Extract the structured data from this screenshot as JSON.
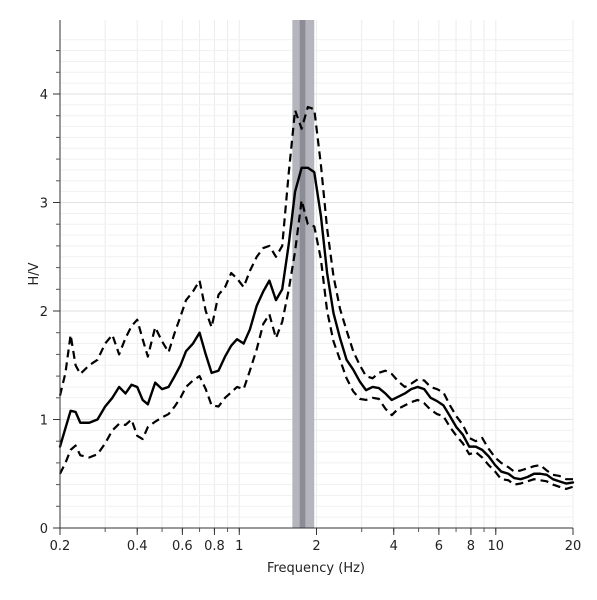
{
  "chart_data": {
    "type": "line",
    "title": "",
    "xlabel": "Frequency (Hz)",
    "ylabel": "H/V",
    "xscale": "log",
    "xlim": [
      0.2,
      20
    ],
    "ylim": [
      0,
      4.5
    ],
    "grid": true,
    "x_ticks": [
      {
        "value": 0.2,
        "label": "0.2"
      },
      {
        "value": 0.4,
        "label": "0.4"
      },
      {
        "value": 0.6,
        "label": "0.6"
      },
      {
        "value": 0.8,
        "label": "0.8"
      },
      {
        "value": 1,
        "label": "1"
      },
      {
        "value": 2,
        "label": "2"
      },
      {
        "value": 4,
        "label": "4"
      },
      {
        "value": 6,
        "label": "6"
      },
      {
        "value": 8,
        "label": "8"
      },
      {
        "value": 10,
        "label": "10"
      },
      {
        "value": 20,
        "label": "20"
      }
    ],
    "y_ticks": [
      {
        "value": 0,
        "label": "0"
      },
      {
        "value": 1,
        "label": "1"
      },
      {
        "value": 2,
        "label": "2"
      },
      {
        "value": 3,
        "label": "3"
      },
      {
        "value": 4,
        "label": "4"
      }
    ],
    "peak_band": {
      "outer": [
        1.61,
        1.96
      ],
      "inner": [
        1.72,
        1.81
      ],
      "outer_color": "#b5b5bd",
      "inner_color": "#8c8c96"
    },
    "x": [
      0.2,
      0.21,
      0.22,
      0.23,
      0.24,
      0.26,
      0.28,
      0.3,
      0.32,
      0.34,
      0.36,
      0.38,
      0.4,
      0.42,
      0.44,
      0.47,
      0.5,
      0.53,
      0.56,
      0.59,
      0.62,
      0.66,
      0.7,
      0.74,
      0.78,
      0.83,
      0.88,
      0.93,
      0.98,
      1.04,
      1.1,
      1.17,
      1.24,
      1.31,
      1.39,
      1.47,
      1.56,
      1.65,
      1.75,
      1.85,
      1.96,
      2.08,
      2.2,
      2.33,
      2.47,
      2.62,
      2.78,
      2.95,
      3.12,
      3.31,
      3.5,
      3.71,
      3.93,
      4.17,
      4.42,
      4.68,
      4.96,
      5.26,
      5.57,
      5.9,
      6.25,
      6.63,
      7.02,
      7.44,
      7.88,
      8.35,
      8.85,
      9.38,
      9.94,
      10.5,
      11.2,
      11.8,
      12.5,
      13.3,
      14.1,
      14.9,
      15.8,
      16.7,
      17.7,
      18.8,
      20
    ],
    "series": [
      {
        "style": "solid",
        "values": [
          0.75,
          0.92,
          1.08,
          1.07,
          0.97,
          0.97,
          1.0,
          1.12,
          1.2,
          1.3,
          1.24,
          1.32,
          1.3,
          1.18,
          1.14,
          1.34,
          1.28,
          1.3,
          1.4,
          1.5,
          1.63,
          1.7,
          1.8,
          1.6,
          1.43,
          1.45,
          1.58,
          1.68,
          1.74,
          1.7,
          1.83,
          2.05,
          2.18,
          2.28,
          2.1,
          2.2,
          2.62,
          3.1,
          3.32,
          3.32,
          3.28,
          2.88,
          2.35,
          1.98,
          1.75,
          1.55,
          1.46,
          1.35,
          1.27,
          1.3,
          1.29,
          1.24,
          1.18,
          1.21,
          1.24,
          1.28,
          1.3,
          1.28,
          1.2,
          1.17,
          1.13,
          1.03,
          0.93,
          0.86,
          0.75,
          0.75,
          0.72,
          0.66,
          0.58,
          0.52,
          0.5,
          0.46,
          0.45,
          0.47,
          0.5,
          0.5,
          0.49,
          0.45,
          0.43,
          0.41,
          0.42
        ]
      },
      {
        "style": "dashed",
        "values": [
          1.22,
          1.43,
          1.78,
          1.5,
          1.42,
          1.5,
          1.55,
          1.7,
          1.78,
          1.6,
          1.75,
          1.86,
          1.92,
          1.74,
          1.58,
          1.85,
          1.72,
          1.62,
          1.8,
          1.95,
          2.1,
          2.18,
          2.28,
          2.0,
          1.85,
          2.15,
          2.22,
          2.35,
          2.3,
          2.22,
          2.37,
          2.5,
          2.58,
          2.6,
          2.5,
          2.6,
          3.28,
          3.85,
          3.68,
          3.88,
          3.86,
          3.35,
          2.76,
          2.32,
          2.02,
          1.82,
          1.63,
          1.5,
          1.4,
          1.38,
          1.43,
          1.45,
          1.42,
          1.35,
          1.3,
          1.33,
          1.37,
          1.36,
          1.3,
          1.28,
          1.25,
          1.13,
          1.03,
          0.95,
          0.83,
          0.8,
          0.83,
          0.73,
          0.65,
          0.6,
          0.56,
          0.52,
          0.53,
          0.55,
          0.57,
          0.58,
          0.53,
          0.49,
          0.48,
          0.45,
          0.45
        ]
      },
      {
        "style": "dashed",
        "values": [
          0.5,
          0.6,
          0.72,
          0.76,
          0.67,
          0.65,
          0.68,
          0.78,
          0.9,
          0.96,
          0.95,
          1.0,
          0.85,
          0.82,
          0.93,
          0.98,
          1.02,
          1.05,
          1.12,
          1.2,
          1.3,
          1.36,
          1.4,
          1.28,
          1.13,
          1.12,
          1.2,
          1.25,
          1.3,
          1.28,
          1.45,
          1.65,
          1.88,
          1.97,
          1.75,
          1.9,
          2.2,
          2.55,
          3.02,
          2.8,
          2.78,
          2.48,
          2.0,
          1.72,
          1.55,
          1.38,
          1.26,
          1.19,
          1.18,
          1.2,
          1.19,
          1.1,
          1.04,
          1.1,
          1.13,
          1.16,
          1.18,
          1.15,
          1.09,
          1.05,
          1.03,
          0.93,
          0.85,
          0.78,
          0.68,
          0.7,
          0.65,
          0.58,
          0.52,
          0.45,
          0.44,
          0.4,
          0.41,
          0.43,
          0.45,
          0.44,
          0.43,
          0.4,
          0.38,
          0.36,
          0.38
        ]
      }
    ]
  }
}
